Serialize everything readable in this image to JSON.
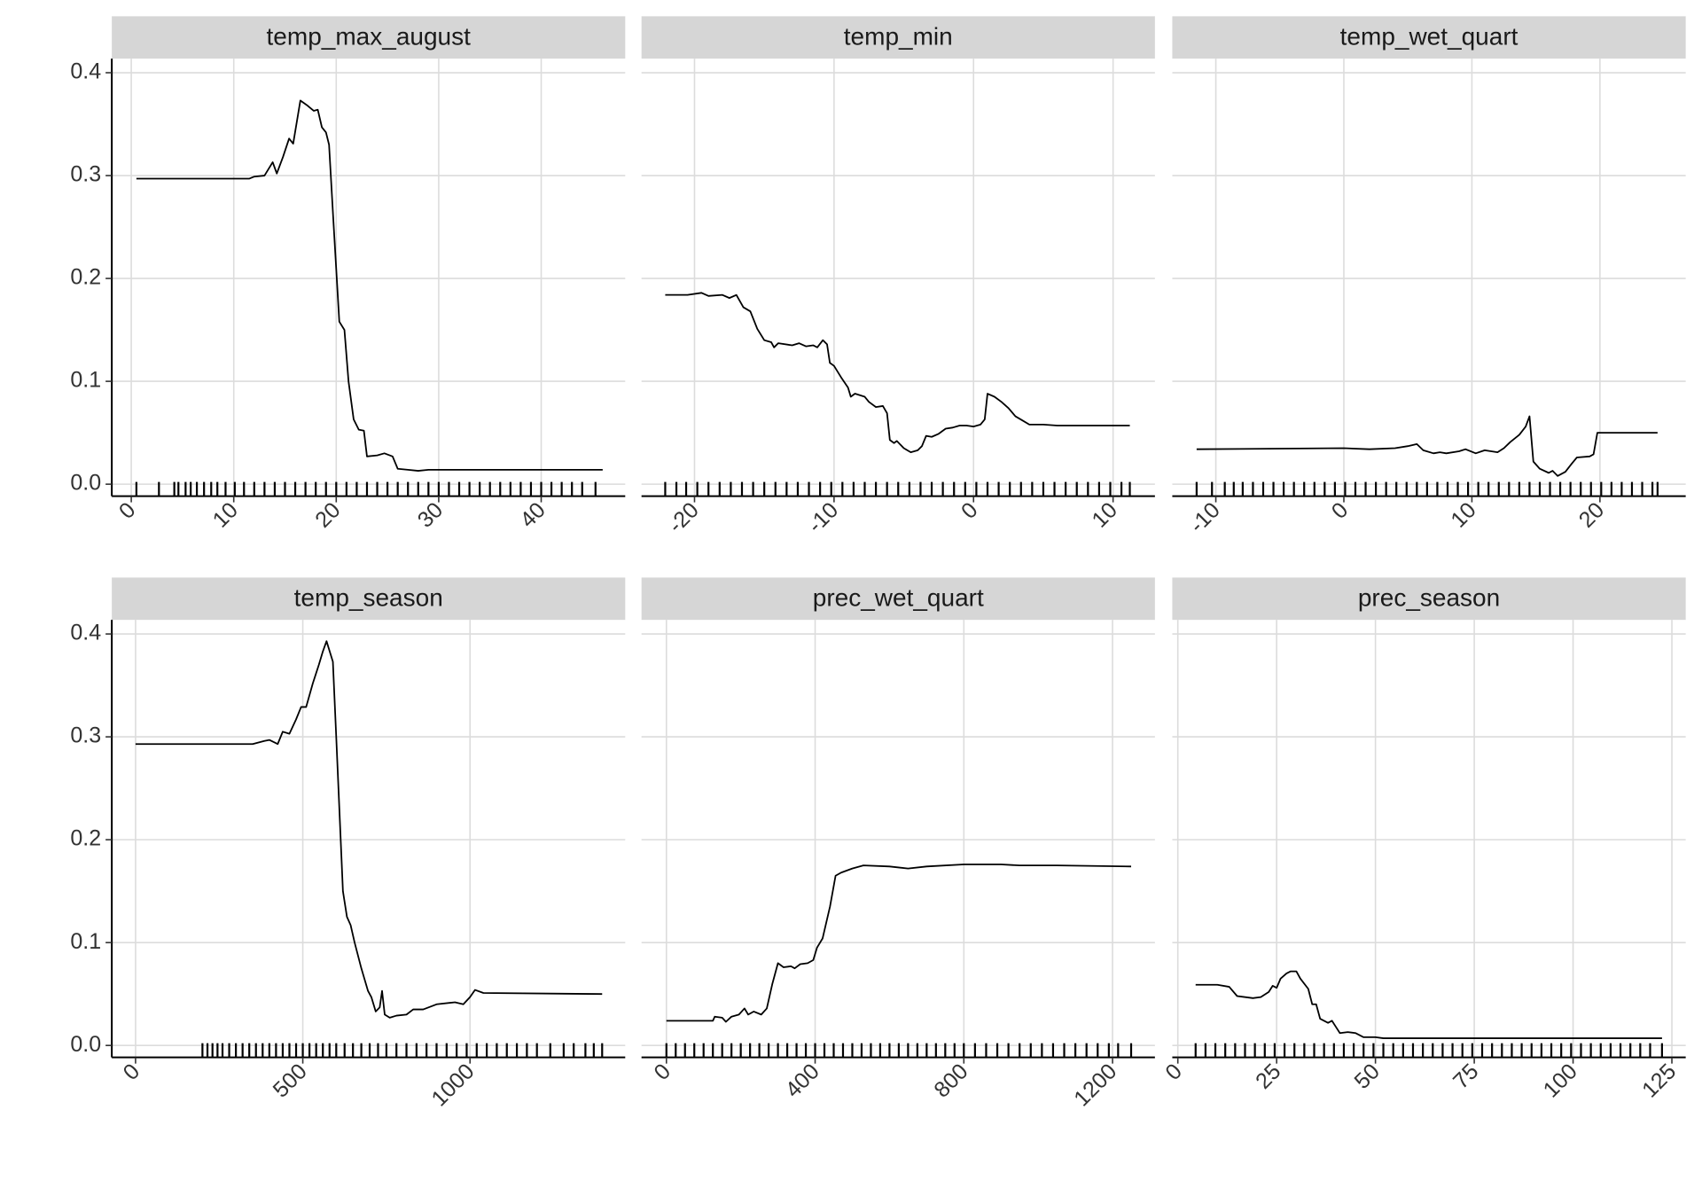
{
  "chart_data": [
    {
      "type": "line",
      "title": "temp_max_august",
      "x": [
        0.5,
        11.5,
        12,
        13,
        13.8,
        14.2,
        14.8,
        15.4,
        15.8,
        16.5,
        17.2,
        17.8,
        18.2,
        18.6,
        19,
        19.3,
        19.7,
        20.3,
        20.8,
        21.2,
        21.7,
        22.2,
        22.7,
        23,
        24,
        24.7,
        25.5,
        26,
        27,
        28,
        29,
        46
      ],
      "values": [
        0.297,
        0.297,
        0.299,
        0.3,
        0.313,
        0.302,
        0.318,
        0.336,
        0.331,
        0.373,
        0.368,
        0.363,
        0.364,
        0.347,
        0.342,
        0.33,
        0.26,
        0.158,
        0.15,
        0.1,
        0.063,
        0.053,
        0.052,
        0.027,
        0.028,
        0.03,
        0.027,
        0.015,
        0.014,
        0.013,
        0.014,
        0.014
      ],
      "rug": [
        0.5,
        2.7,
        4.2,
        4.6,
        5.3,
        5.8,
        6.4,
        7.1,
        7.8,
        8.4,
        9.2,
        10.1,
        11,
        12,
        13,
        14,
        15,
        16,
        17,
        18,
        19,
        20,
        21,
        22,
        23,
        24,
        25,
        26,
        27,
        28,
        29,
        30,
        31,
        32,
        33,
        34,
        35,
        36,
        37,
        38,
        39,
        40,
        41,
        42,
        43,
        44,
        45.3
      ],
      "xlim": [
        -1.9,
        48.2
      ],
      "xticks": [
        0,
        10,
        20,
        30,
        40
      ],
      "ylim": [
        -0.0116,
        0.4137
      ],
      "yticks": [
        {
          "value": 0,
          "label": "0.0"
        },
        0.1,
        0.2,
        0.3,
        0.4
      ],
      "grid": true,
      "color": "#000000"
    },
    {
      "type": "line",
      "title": "temp_min",
      "x": [
        -22.1,
        -20.5,
        -19.5,
        -19,
        -18,
        -17.5,
        -17,
        -16.5,
        -16,
        -15.5,
        -15,
        -14.5,
        -14.3,
        -14,
        -13,
        -12.5,
        -12,
        -11.5,
        -11.2,
        -10.8,
        -10.5,
        -10.3,
        -10,
        -9.5,
        -9,
        -8.8,
        -8.5,
        -7.8,
        -7.5,
        -7,
        -6.5,
        -6.2,
        -6,
        -5.7,
        -5.5,
        -5,
        -4.5,
        -4,
        -3.7,
        -3.4,
        -3,
        -2.5,
        -2,
        -1.5,
        -1,
        -0.5,
        0,
        0.5,
        0.8,
        1,
        1.5,
        2,
        2.5,
        3,
        3.5,
        4,
        5,
        6,
        11.2
      ],
      "values": [
        0.184,
        0.184,
        0.186,
        0.183,
        0.184,
        0.181,
        0.184,
        0.172,
        0.168,
        0.151,
        0.14,
        0.138,
        0.133,
        0.137,
        0.135,
        0.137,
        0.134,
        0.135,
        0.133,
        0.14,
        0.136,
        0.118,
        0.115,
        0.104,
        0.094,
        0.085,
        0.088,
        0.085,
        0.08,
        0.075,
        0.076,
        0.069,
        0.043,
        0.04,
        0.042,
        0.035,
        0.031,
        0.033,
        0.037,
        0.047,
        0.046,
        0.049,
        0.054,
        0.055,
        0.057,
        0.057,
        0.056,
        0.058,
        0.063,
        0.088,
        0.085,
        0.08,
        0.074,
        0.066,
        0.062,
        0.058,
        0.058,
        0.057,
        0.057
      ],
      "rug": [
        -22.1,
        -21.3,
        -20.6,
        -19.8,
        -19,
        -18.2,
        -17.4,
        -16.6,
        -15.8,
        -15,
        -14.2,
        -13.4,
        -12.6,
        -11.8,
        -11,
        -10.2,
        -9.4,
        -8.6,
        -7.8,
        -7,
        -6.2,
        -5.4,
        -4.6,
        -3.8,
        -3,
        -2.2,
        -1.4,
        -0.6,
        0.2,
        1,
        1.8,
        2.6,
        3.4,
        4.2,
        5,
        5.8,
        6.6,
        7.4,
        8.2,
        9,
        9.8,
        10.6,
        11.2
      ],
      "xlim": [
        -23.8,
        13.0
      ],
      "xticks": [
        -20,
        -10,
        0,
        10
      ],
      "ylim": [
        -0.0116,
        0.4137
      ],
      "yticks": [
        0,
        0.1,
        0.2,
        0.3,
        0.4
      ],
      "grid": true,
      "color": "#000000"
    },
    {
      "type": "line",
      "title": "temp_wet_quart",
      "x": [
        -11.5,
        0,
        2,
        4,
        5,
        5.7,
        6.2,
        7,
        7.5,
        8,
        9,
        9.5,
        10.3,
        11,
        12,
        12.5,
        13,
        13.7,
        14.2,
        14.5,
        14.8,
        15.3,
        16,
        16.3,
        16.7,
        17.3,
        17.8,
        18.2,
        19.2,
        19.5,
        19.8,
        24.5
      ],
      "values": [
        0.034,
        0.035,
        0.034,
        0.035,
        0.037,
        0.039,
        0.033,
        0.03,
        0.031,
        0.03,
        0.032,
        0.034,
        0.03,
        0.033,
        0.031,
        0.035,
        0.041,
        0.048,
        0.056,
        0.066,
        0.022,
        0.015,
        0.011,
        0.013,
        0.008,
        0.012,
        0.02,
        0.026,
        0.027,
        0.029,
        0.05,
        0.05
      ],
      "rug": [
        -11.5,
        -10.3,
        -9.3,
        -8.6,
        -7.9,
        -7.1,
        -6.3,
        -5.5,
        -4.7,
        -3.9,
        -3.1,
        -2.3,
        -1.5,
        -0.7,
        0.1,
        0.9,
        1.7,
        2.5,
        3.3,
        4.1,
        4.9,
        5.7,
        6.5,
        7.3,
        8.1,
        8.9,
        9.7,
        10.5,
        11.3,
        12.1,
        12.9,
        13.7,
        14.5,
        15.3,
        16.1,
        16.9,
        17.7,
        18.5,
        19.3,
        20.1,
        20.9,
        21.7,
        22.5,
        23.3,
        24.1,
        24.5
      ],
      "xlim": [
        -13.4,
        26.7
      ],
      "xticks": [
        -10,
        0,
        10,
        20
      ],
      "ylim": [
        -0.0116,
        0.4137
      ],
      "yticks": [
        0,
        0.1,
        0.2,
        0.3,
        0.4
      ],
      "grid": true,
      "color": "#000000"
    },
    {
      "type": "line",
      "title": "temp_season",
      "x": [
        0,
        350,
        385,
        400,
        425,
        440,
        460,
        480,
        495,
        510,
        530,
        548,
        560,
        571,
        590,
        600,
        620,
        632,
        643,
        655,
        675,
        695,
        705,
        718,
        730,
        737,
        745,
        760,
        780,
        810,
        830,
        860,
        900,
        955,
        980,
        1000,
        1015,
        1040,
        1395
      ],
      "values": [
        0.293,
        0.293,
        0.296,
        0.297,
        0.293,
        0.305,
        0.303,
        0.317,
        0.329,
        0.329,
        0.352,
        0.37,
        0.383,
        0.393,
        0.373,
        0.3,
        0.15,
        0.125,
        0.117,
        0.1,
        0.075,
        0.053,
        0.047,
        0.033,
        0.037,
        0.053,
        0.03,
        0.027,
        0.029,
        0.03,
        0.035,
        0.035,
        0.04,
        0.042,
        0.04,
        0.047,
        0.054,
        0.051,
        0.05
      ],
      "rug": [
        200,
        215,
        230,
        245,
        260,
        280,
        300,
        320,
        340,
        360,
        380,
        400,
        420,
        440,
        460,
        480,
        500,
        520,
        540,
        560,
        580,
        600,
        625,
        650,
        675,
        700,
        725,
        750,
        780,
        810,
        840,
        870,
        900,
        930,
        960,
        990,
        1020,
        1050,
        1080,
        1110,
        1140,
        1170,
        1200,
        1240,
        1280,
        1310,
        1345,
        1370,
        1395
      ],
      "xlim": [
        -71,
        1464
      ],
      "xticks": [
        0,
        500,
        1000
      ],
      "ylim": [
        -0.0116,
        0.4137
      ],
      "yticks": [
        {
          "value": 0,
          "label": "0.0"
        },
        0.1,
        0.2,
        0.3,
        0.4
      ],
      "grid": true,
      "color": "#000000"
    },
    {
      "type": "line",
      "title": "prec_wet_quart",
      "x": [
        0,
        125,
        130,
        150,
        160,
        175,
        195,
        210,
        220,
        235,
        255,
        270,
        285,
        300,
        315,
        335,
        345,
        360,
        380,
        395,
        405,
        420,
        440,
        455,
        470,
        500,
        530,
        600,
        650,
        700,
        800,
        900,
        950,
        1050,
        1250
      ],
      "values": [
        0.024,
        0.024,
        0.028,
        0.027,
        0.023,
        0.028,
        0.03,
        0.036,
        0.03,
        0.033,
        0.03,
        0.036,
        0.06,
        0.08,
        0.076,
        0.077,
        0.075,
        0.079,
        0.08,
        0.083,
        0.095,
        0.104,
        0.135,
        0.165,
        0.168,
        0.172,
        0.175,
        0.174,
        0.172,
        0.174,
        0.176,
        0.176,
        0.175,
        0.175,
        0.174
      ],
      "rug": [
        0,
        25,
        50,
        75,
        100,
        125,
        150,
        175,
        200,
        225,
        250,
        275,
        300,
        325,
        350,
        375,
        400,
        425,
        450,
        475,
        500,
        525,
        550,
        575,
        600,
        625,
        650,
        675,
        700,
        725,
        750,
        775,
        800,
        830,
        860,
        890,
        920,
        950,
        980,
        1010,
        1040,
        1070,
        1100,
        1130,
        1160,
        1190,
        1215,
        1250
      ],
      "xlim": [
        -67,
        1314
      ],
      "xticks": [
        0,
        400,
        800,
        1200
      ],
      "ylim": [
        -0.0116,
        0.4137
      ],
      "yticks": [
        0,
        0.1,
        0.2,
        0.3,
        0.4
      ],
      "grid": true,
      "color": "#000000"
    },
    {
      "type": "line",
      "title": "prec_season",
      "x": [
        4.5,
        10,
        13,
        15,
        19,
        21,
        23,
        24,
        25,
        26,
        27.5,
        28.5,
        30,
        31,
        33,
        34,
        35,
        36,
        38,
        39,
        40,
        41,
        43,
        45,
        47,
        50,
        52,
        122.5
      ],
      "values": [
        0.059,
        0.059,
        0.057,
        0.048,
        0.046,
        0.047,
        0.052,
        0.058,
        0.056,
        0.065,
        0.07,
        0.072,
        0.072,
        0.065,
        0.055,
        0.04,
        0.04,
        0.026,
        0.022,
        0.024,
        0.018,
        0.012,
        0.013,
        0.012,
        0.008,
        0.008,
        0.007,
        0.007
      ],
      "rug": [
        4.5,
        7,
        9.5,
        12,
        14.5,
        17,
        19.5,
        22,
        24.5,
        27,
        29.5,
        32,
        34.5,
        37,
        39.5,
        42,
        44.5,
        47,
        49.5,
        52,
        54.5,
        57,
        59.5,
        62,
        64.5,
        67,
        69.5,
        72,
        74.5,
        77,
        79.5,
        82,
        84.5,
        87,
        89.5,
        92,
        94.5,
        97,
        99.5,
        102,
        104.5,
        107,
        109.5,
        112,
        114.5,
        117,
        119.5,
        122.5
      ],
      "xlim": [
        -1.4,
        128.5
      ],
      "xticks": [
        0,
        25,
        50,
        75,
        100,
        125
      ],
      "ylim": [
        -0.0116,
        0.4137
      ],
      "yticks": [
        0,
        0.1,
        0.2,
        0.3,
        0.4
      ],
      "grid": true,
      "color": "#000000"
    }
  ]
}
